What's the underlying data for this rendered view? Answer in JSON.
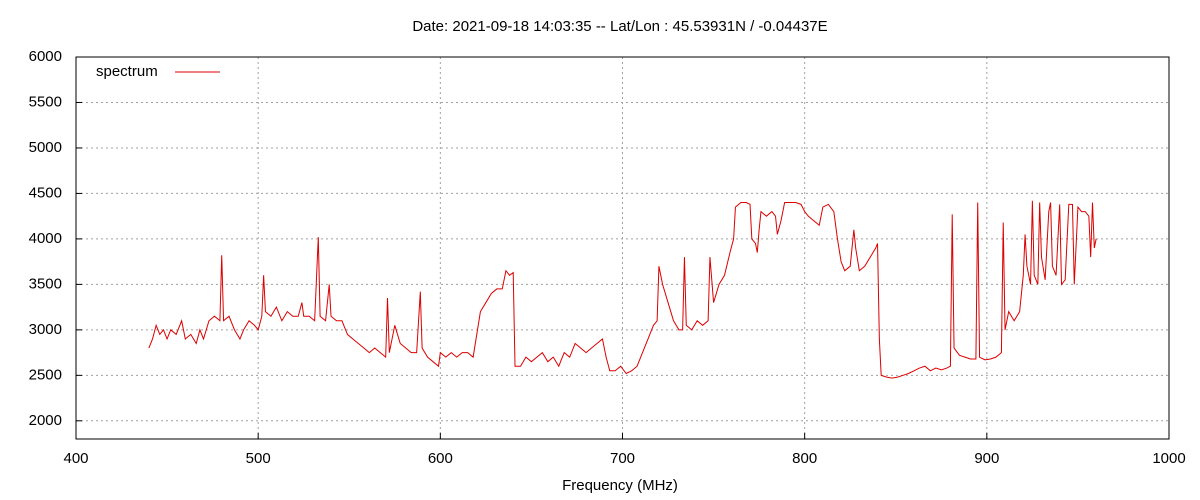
{
  "chart_data": {
    "type": "line",
    "title": "Date: 2021-09-18 14:03:35  --  Lat/Lon : 45.53931N / -0.04437E",
    "xlabel": "Frequency (MHz)",
    "xlim": [
      400,
      1000
    ],
    "xticks": [
      400,
      500,
      600,
      700,
      800,
      900,
      1000
    ],
    "ylim": [
      1800,
      6000
    ],
    "yticks": [
      2000,
      2500,
      3000,
      3500,
      4000,
      4500,
      5000,
      5500,
      6000
    ],
    "grid": true,
    "legend": "top-left",
    "x": [
      440,
      442,
      444,
      446,
      448,
      450,
      452,
      455,
      458,
      460,
      463,
      466,
      468,
      470,
      473,
      476,
      479,
      480,
      481,
      484,
      487,
      490,
      492,
      495,
      498,
      500,
      502,
      503,
      504,
      507,
      510,
      513,
      516,
      519,
      522,
      524,
      525,
      528,
      531,
      533,
      534,
      537,
      539,
      540,
      543,
      546,
      549,
      552,
      555,
      558,
      561,
      564,
      567,
      570,
      571,
      572,
      575,
      578,
      581,
      584,
      587,
      589,
      590,
      593,
      596,
      599,
      600,
      603,
      606,
      609,
      612,
      615,
      618,
      620,
      622,
      625,
      628,
      631,
      634,
      636,
      638,
      640,
      641,
      644,
      647,
      650,
      653,
      656,
      659,
      662,
      665,
      668,
      671,
      674,
      677,
      680,
      683,
      686,
      689,
      691,
      693,
      696,
      699,
      702,
      705,
      708,
      711,
      714,
      717,
      719,
      720,
      722,
      725,
      728,
      731,
      733,
      734,
      735,
      738,
      741,
      744,
      747,
      748,
      750,
      753,
      756,
      759,
      761,
      762,
      765,
      768,
      770,
      771,
      773,
      774,
      775,
      776,
      779,
      782,
      784,
      785,
      787,
      789,
      792,
      795,
      798,
      800,
      802,
      805,
      808,
      810,
      813,
      816,
      818,
      820,
      822,
      825,
      827,
      828,
      830,
      833,
      836,
      839,
      840,
      841,
      842,
      845,
      848,
      851,
      854,
      857,
      860,
      863,
      866,
      869,
      872,
      875,
      878,
      880,
      881,
      882,
      885,
      888,
      891,
      894,
      895,
      896,
      899,
      902,
      905,
      908,
      909,
      910,
      912,
      915,
      918,
      920,
      921,
      922,
      924,
      925,
      926,
      928,
      929,
      930,
      932,
      934,
      935,
      936,
      938,
      940,
      941,
      943,
      945,
      947,
      948,
      950,
      952,
      954,
      956,
      957,
      958,
      959,
      960
    ],
    "series": [
      {
        "name": "spectrum",
        "color": "#dd0000",
        "values": [
          2800,
          2900,
          3050,
          2950,
          3000,
          2900,
          3000,
          2950,
          3100,
          2900,
          2950,
          2850,
          3000,
          2900,
          3100,
          3150,
          3100,
          3820,
          3100,
          3150,
          3000,
          2900,
          3000,
          3100,
          3050,
          3000,
          3150,
          3600,
          3200,
          3150,
          3250,
          3100,
          3200,
          3150,
          3150,
          3300,
          3150,
          3150,
          3100,
          4020,
          3150,
          3100,
          3500,
          3150,
          3100,
          3100,
          2950,
          2900,
          2850,
          2800,
          2750,
          2800,
          2750,
          2700,
          3350,
          2750,
          3050,
          2850,
          2800,
          2750,
          2750,
          3420,
          2800,
          2700,
          2650,
          2600,
          2750,
          2700,
          2750,
          2700,
          2750,
          2750,
          2700,
          2950,
          3200,
          3300,
          3400,
          3450,
          3450,
          3650,
          3600,
          3630,
          2600,
          2600,
          2700,
          2650,
          2700,
          2750,
          2650,
          2700,
          2600,
          2750,
          2700,
          2850,
          2800,
          2750,
          2800,
          2850,
          2900,
          2700,
          2550,
          2550,
          2600,
          2520,
          2550,
          2600,
          2750,
          2900,
          3050,
          3100,
          3700,
          3500,
          3300,
          3100,
          3000,
          3000,
          3800,
          3050,
          3000,
          3100,
          3050,
          3100,
          3800,
          3300,
          3500,
          3600,
          3850,
          4000,
          4350,
          4400,
          4400,
          4380,
          4000,
          3950,
          3850,
          4100,
          4300,
          4250,
          4300,
          4250,
          4050,
          4200,
          4400,
          4400,
          4400,
          4380,
          4300,
          4250,
          4200,
          4150,
          4350,
          4380,
          4300,
          4000,
          3750,
          3650,
          3700,
          4100,
          3900,
          3650,
          3700,
          3800,
          3900,
          3950,
          2900,
          2500,
          2480,
          2470,
          2480,
          2500,
          2520,
          2550,
          2580,
          2600,
          2550,
          2580,
          2560,
          2580,
          2600,
          4270,
          2800,
          2720,
          2700,
          2680,
          2680,
          4400,
          2700,
          2670,
          2680,
          2700,
          2750,
          4180,
          3000,
          3200,
          3100,
          3200,
          3600,
          4050,
          3700,
          3500,
          4420,
          3600,
          3500,
          4400,
          3800,
          3550,
          4300,
          4400,
          3700,
          3600,
          4380,
          3500,
          3550,
          4380,
          4380,
          3500,
          4350,
          4300,
          4300,
          4250,
          3800,
          4400,
          3900,
          4000
        ]
      }
    ]
  }
}
